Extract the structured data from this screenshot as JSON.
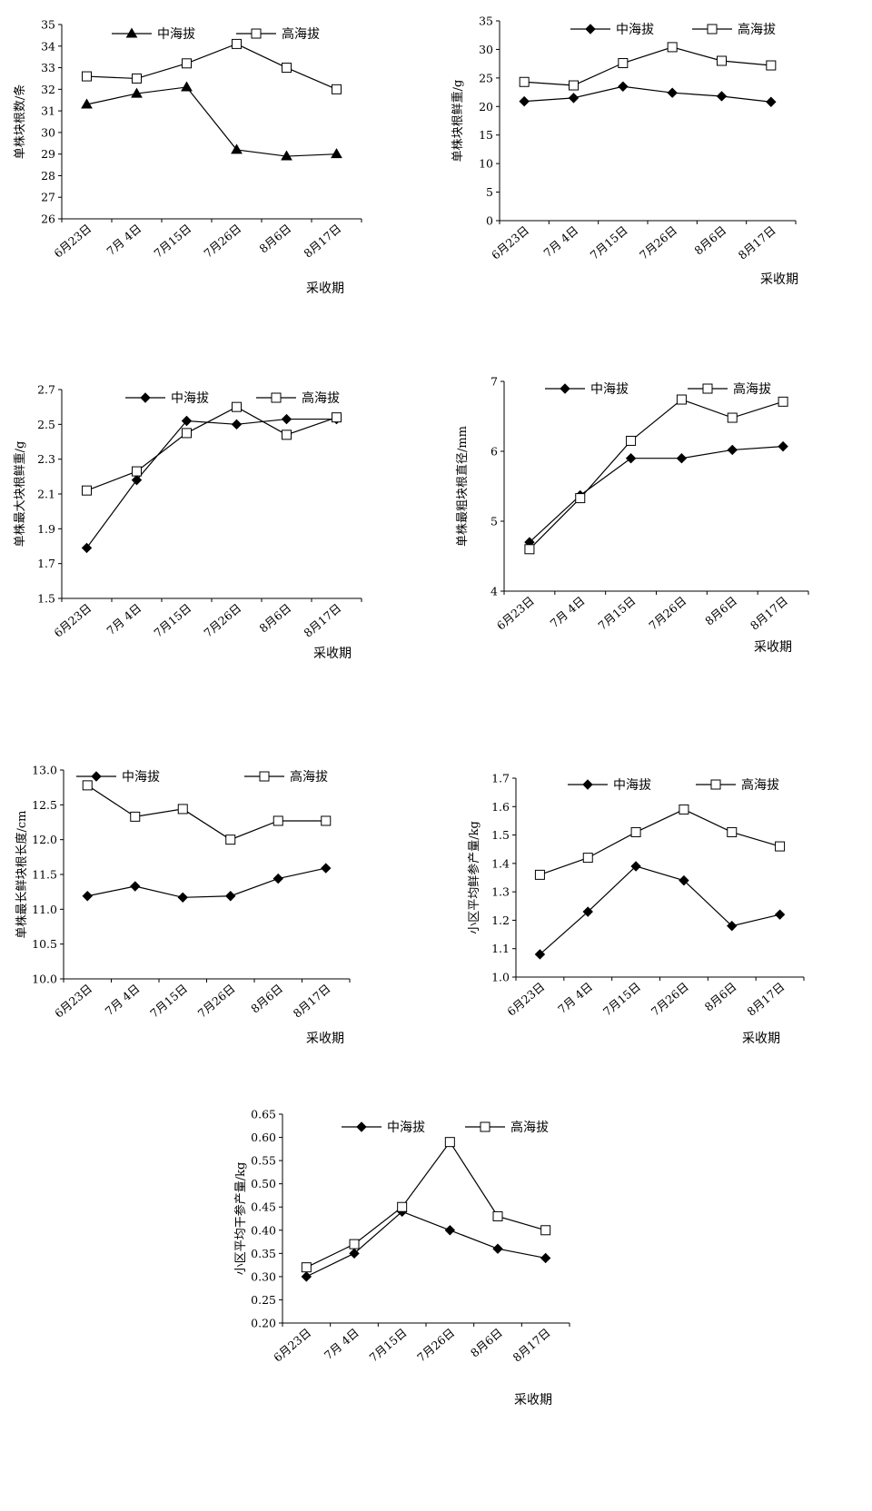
{
  "chart_data": [
    {
      "type": "line",
      "xlabel": "采收期",
      "ylabel": "单株块根数/条",
      "ylim": [
        26,
        35
      ],
      "ystep": 1,
      "ydecimals": 0,
      "categories": [
        "6月23日",
        "7月 4日",
        "7月15日",
        "7月26日",
        "8月6日",
        "8月17日"
      ],
      "series": [
        {
          "name": "中海拔",
          "marker": "triangle",
          "values": [
            31.3,
            31.8,
            32.1,
            29.2,
            28.9,
            29.0
          ]
        },
        {
          "name": "高海拔",
          "marker": "square-open",
          "values": [
            32.6,
            32.5,
            33.2,
            34.1,
            33.0,
            32.0
          ]
        }
      ]
    },
    {
      "type": "line",
      "xlabel": "采收期",
      "ylabel": "单株块根鲜重/g",
      "ylim": [
        0,
        35
      ],
      "ystep": 5,
      "ydecimals": 0,
      "categories": [
        "6月23日",
        "7月 4日",
        "7月15日",
        "7月26日",
        "8月6日",
        "8月17日"
      ],
      "series": [
        {
          "name": "中海拔",
          "marker": "diamond",
          "values": [
            20.9,
            21.5,
            23.5,
            22.4,
            21.8,
            20.8
          ]
        },
        {
          "name": "高海拔",
          "marker": "square-open",
          "values": [
            24.3,
            23.7,
            27.6,
            30.4,
            28.0,
            27.2
          ]
        }
      ]
    },
    {
      "type": "line",
      "xlabel": "采收期",
      "ylabel": "单株最大块根鲜重/g",
      "ylim": [
        1.5,
        2.7
      ],
      "ystep": 0.2,
      "ydecimals": 1,
      "categories": [
        "6月23日",
        "7月 4日",
        "7月15日",
        "7月26日",
        "8月6日",
        "8月17日"
      ],
      "series": [
        {
          "name": "中海拔",
          "marker": "diamond",
          "values": [
            1.79,
            2.18,
            2.52,
            2.5,
            2.53,
            2.53
          ]
        },
        {
          "name": "高海拔",
          "marker": "square-open",
          "values": [
            2.12,
            2.23,
            2.45,
            2.6,
            2.44,
            2.54
          ]
        }
      ]
    },
    {
      "type": "line",
      "xlabel": "采收期",
      "ylabel": "单株最粗块根直径/mm",
      "ylim": [
        4,
        7
      ],
      "ystep": 1,
      "ydecimals": 0,
      "categories": [
        "6月23日",
        "7月 4日",
        "7月15日",
        "7月26日",
        "8月6日",
        "8月17日"
      ],
      "series": [
        {
          "name": "中海拔",
          "marker": "diamond",
          "values": [
            4.7,
            5.37,
            5.9,
            5.9,
            6.02,
            6.07
          ]
        },
        {
          "name": "高海拔",
          "marker": "square-open",
          "values": [
            4.6,
            5.33,
            6.15,
            6.74,
            6.48,
            6.71
          ]
        }
      ]
    },
    {
      "type": "line",
      "xlabel": "采收期",
      "ylabel": "单株最长鲜块根长度/cm",
      "ylim": [
        10.0,
        13.0
      ],
      "ystep": 0.5,
      "ydecimals": 1,
      "categories": [
        "6月23日",
        "7月 4日",
        "7月15日",
        "7月26日",
        "8月6日",
        "8月17日"
      ],
      "series": [
        {
          "name": "中海拔",
          "marker": "diamond",
          "values": [
            11.19,
            11.33,
            11.17,
            11.19,
            11.44,
            11.59
          ]
        },
        {
          "name": "高海拔",
          "marker": "square-open",
          "values": [
            12.78,
            12.33,
            12.44,
            12.0,
            12.27,
            12.27
          ]
        }
      ]
    },
    {
      "type": "line",
      "xlabel": "采收期",
      "ylabel": "小区平均鲜参产量/kg",
      "ylim": [
        1.0,
        1.7
      ],
      "ystep": 0.1,
      "ydecimals": 1,
      "categories": [
        "6月23日",
        "7月 4日",
        "7月15日",
        "7月26日",
        "8月6日",
        "8月17日"
      ],
      "series": [
        {
          "name": "中海拔",
          "marker": "diamond",
          "values": [
            1.08,
            1.23,
            1.39,
            1.34,
            1.18,
            1.22
          ]
        },
        {
          "name": "高海拔",
          "marker": "square-open",
          "values": [
            1.36,
            1.42,
            1.51,
            1.59,
            1.51,
            1.46
          ]
        }
      ]
    },
    {
      "type": "line",
      "xlabel": "采收期",
      "ylabel": "小区平均干参产量/kg",
      "ylim": [
        0.2,
        0.65
      ],
      "ystep": 0.05,
      "ydecimals": 2,
      "categories": [
        "6月23日",
        "7月 4日",
        "7月15日",
        "7月26日",
        "8月6日",
        "8月17日"
      ],
      "series": [
        {
          "name": "中海拔",
          "marker": "diamond",
          "values": [
            0.3,
            0.35,
            0.44,
            0.4,
            0.36,
            0.34
          ]
        },
        {
          "name": "高海拔",
          "marker": "square-open",
          "values": [
            0.32,
            0.37,
            0.45,
            0.59,
            0.43,
            0.4
          ]
        }
      ]
    }
  ]
}
